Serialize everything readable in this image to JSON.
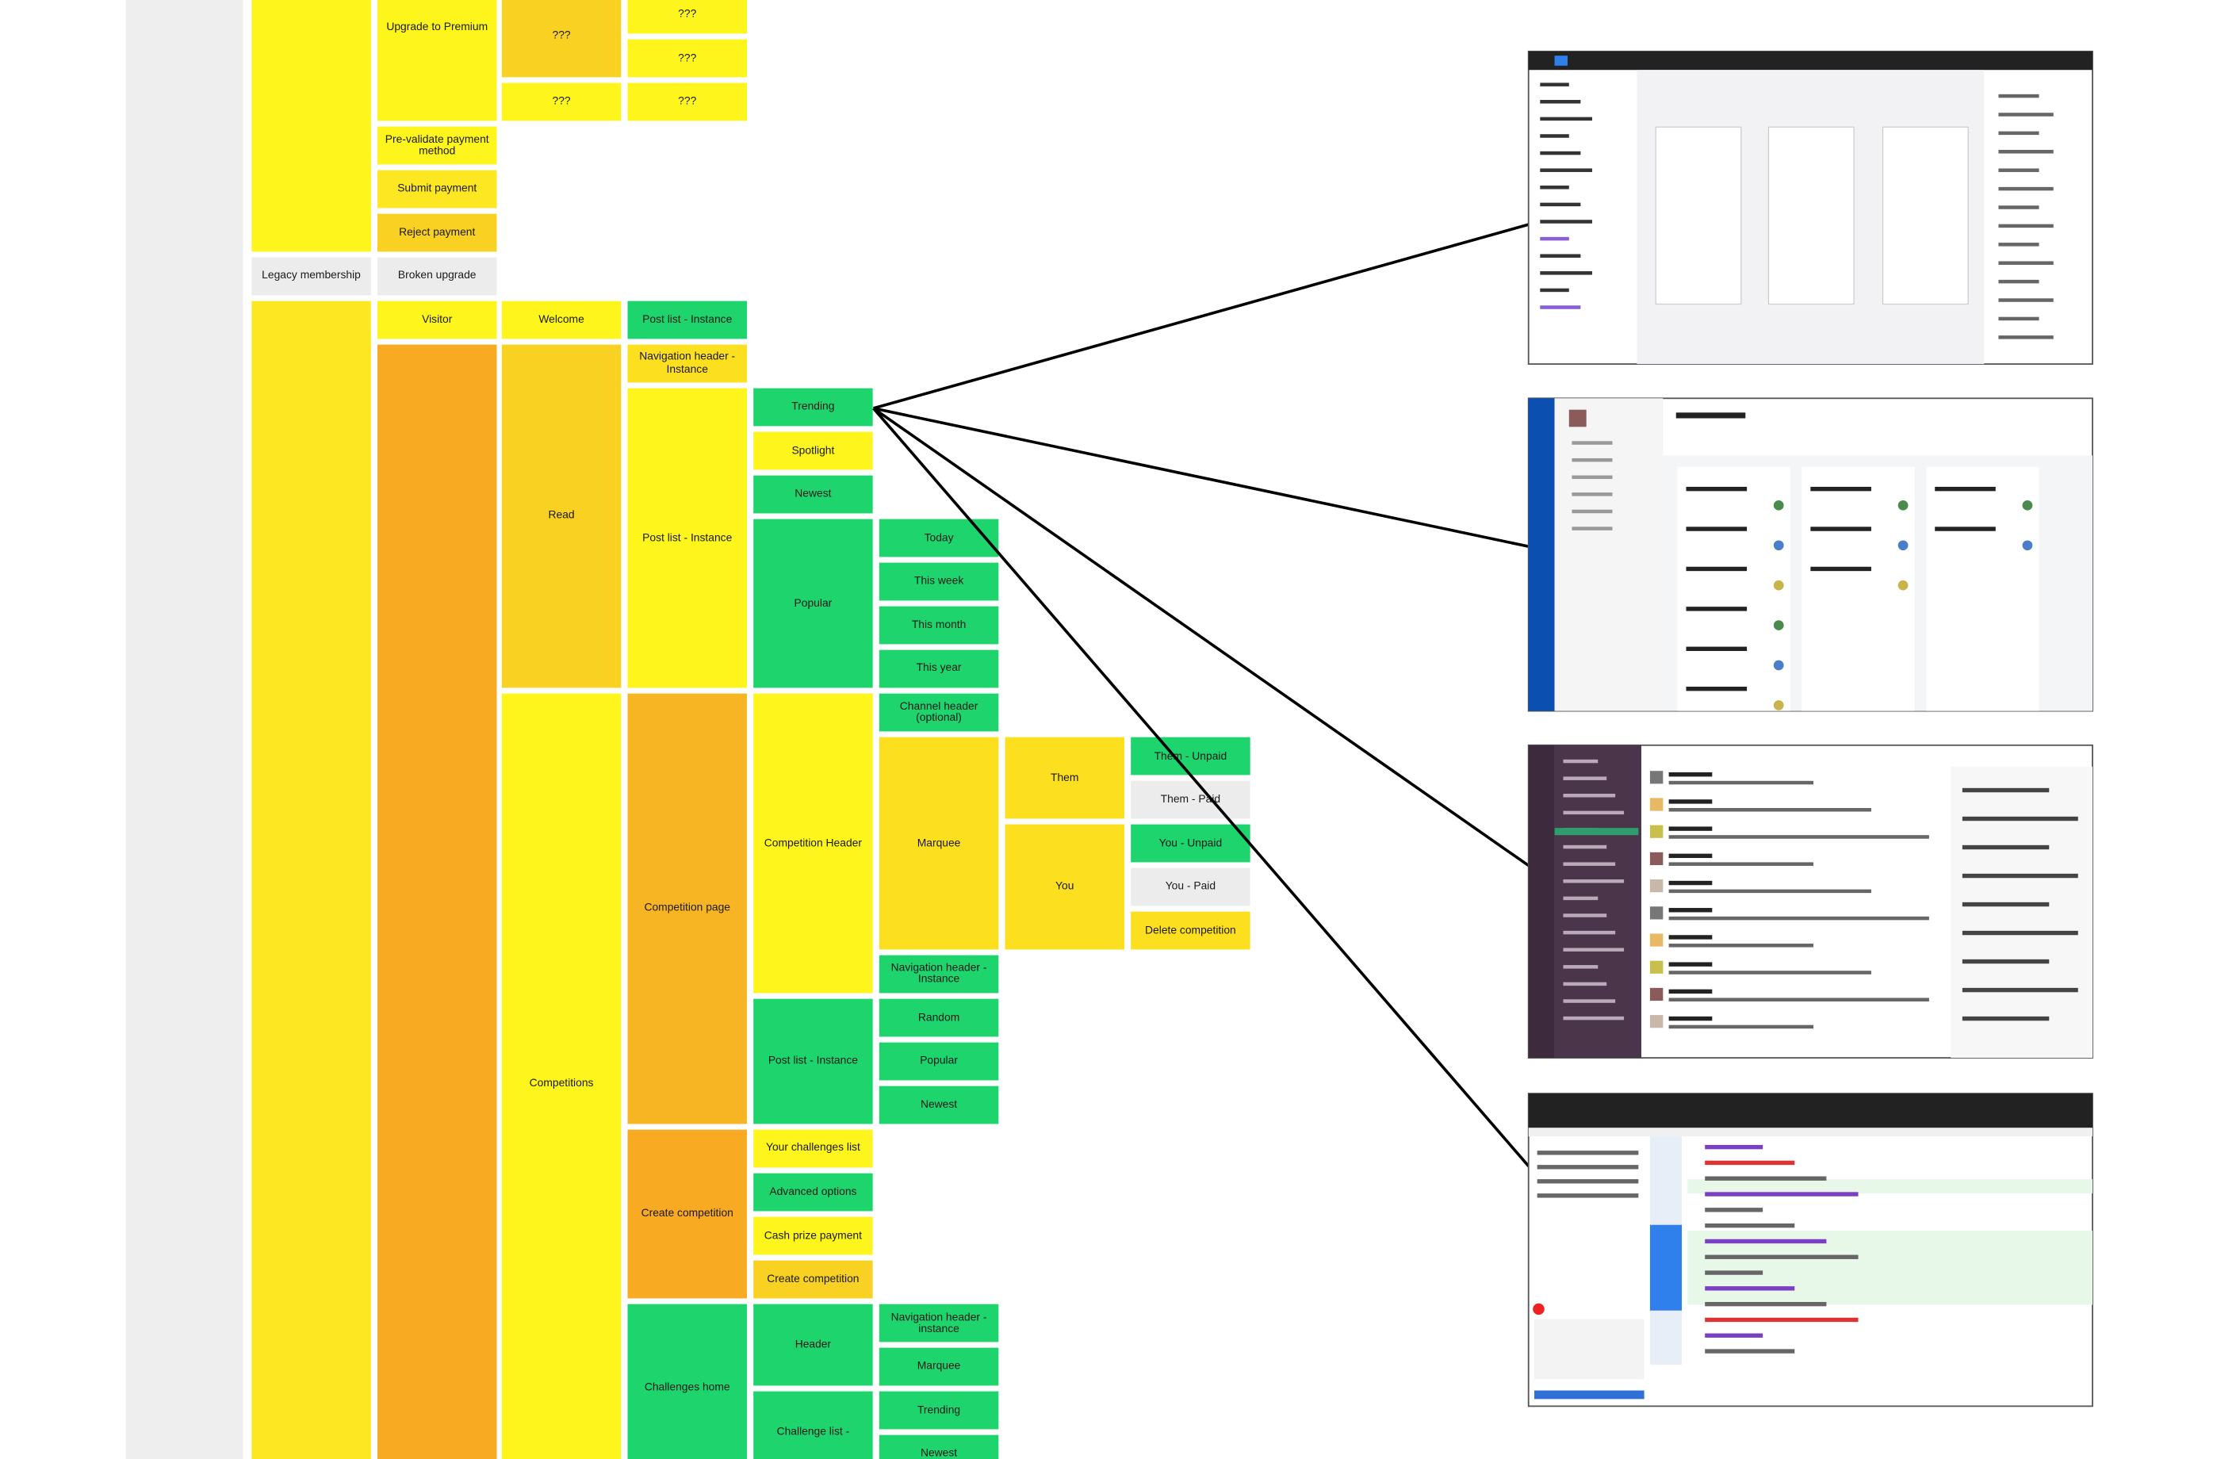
{
  "nodes": [
    {
      "label": "Upgrade to Premium"
    },
    {
      "label": "Pre-validate payment method"
    },
    {
      "label": "Submit payment"
    },
    {
      "label": "Reject payment"
    },
    {
      "label": "Legacy membership"
    },
    {
      "label": "Broken upgrade"
    },
    {
      "label": "???"
    },
    {
      "label": "???"
    },
    {
      "label": "???"
    },
    {
      "label": "???"
    },
    {
      "label": "???"
    },
    {
      "label": "Visitor"
    },
    {
      "label": "Welcome"
    },
    {
      "label": "Post list - Instance"
    },
    {
      "label": "Navigation header - Instance"
    },
    {
      "label": "Read"
    },
    {
      "label": "Post list - Instance"
    },
    {
      "label": "Trending"
    },
    {
      "label": "Spotlight"
    },
    {
      "label": "Newest"
    },
    {
      "label": "Popular"
    },
    {
      "label": "Today"
    },
    {
      "label": "This week"
    },
    {
      "label": "This month"
    },
    {
      "label": "This year"
    },
    {
      "label": "Competitions"
    },
    {
      "label": "Competition page"
    },
    {
      "label": "Competition Header"
    },
    {
      "label": "Channel header (optional)"
    },
    {
      "label": "Marquee"
    },
    {
      "label": "Them"
    },
    {
      "label": "Them - Unpaid"
    },
    {
      "label": "Them - Paid"
    },
    {
      "label": "You"
    },
    {
      "label": "You - Unpaid"
    },
    {
      "label": "You - Paid"
    },
    {
      "label": "Delete competition"
    },
    {
      "label": "Navigation header - Instance"
    },
    {
      "label": "Post list - Instance"
    },
    {
      "label": "Random"
    },
    {
      "label": "Popular"
    },
    {
      "label": "Newest"
    },
    {
      "label": "Create competition"
    },
    {
      "label": "Your challenges list"
    },
    {
      "label": "Advanced options"
    },
    {
      "label": "Cash prize payment"
    },
    {
      "label": "Create competition"
    },
    {
      "label": "Challenges home"
    },
    {
      "label": "Header"
    },
    {
      "label": "Navigation header - instance"
    },
    {
      "label": "Marquee"
    },
    {
      "label": "Trending"
    },
    {
      "label": "Challenge list -"
    },
    {
      "label": "Newest"
    }
  ]
}
